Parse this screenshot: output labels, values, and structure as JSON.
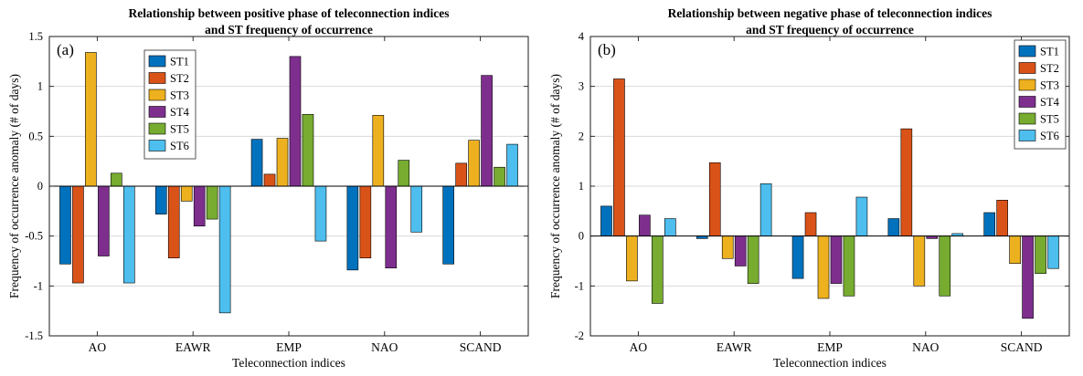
{
  "figure": {
    "background": "#ffffff",
    "axis_color": "#1a1a1a",
    "grid_color": "#d9d9d9",
    "bar_edge_color": "#000000"
  },
  "chart_data": [
    {
      "type": "bar",
      "panel_label": "(a)",
      "title": "Relationship between positive phase of teleconnection indices\nand ST frequency of occurrence",
      "xlabel": "Teleconnection indices",
      "ylabel": "Frequency of occurrence anomaly (# of days)",
      "categories": [
        "AO",
        "EAWR",
        "EMP",
        "NAO",
        "SCAND"
      ],
      "ylim": [
        -1.5,
        1.5
      ],
      "yticks": [
        -1.5,
        -1,
        -0.5,
        0,
        0.5,
        1,
        1.5
      ],
      "ytick_labels": [
        "-1.5",
        "-1",
        "-0.5",
        "0",
        "0.5",
        "1",
        "1.5"
      ],
      "grid": true,
      "legend_position": "inside-top-left",
      "series": [
        {
          "name": "ST1",
          "color": "#0072BD",
          "values": [
            -0.78,
            -0.28,
            0.47,
            -0.84,
            -0.78
          ]
        },
        {
          "name": "ST2",
          "color": "#D95319",
          "values": [
            -0.97,
            -0.72,
            0.12,
            -0.72,
            0.23
          ]
        },
        {
          "name": "ST3",
          "color": "#EDB120",
          "values": [
            1.34,
            -0.15,
            0.48,
            0.71,
            0.46
          ]
        },
        {
          "name": "ST4",
          "color": "#7E2F8E",
          "values": [
            -0.7,
            -0.4,
            1.3,
            -0.82,
            1.11
          ]
        },
        {
          "name": "ST5",
          "color": "#77AC30",
          "values": [
            0.13,
            -0.33,
            0.72,
            0.26,
            0.19
          ]
        },
        {
          "name": "ST6",
          "color": "#4DBEEE",
          "values": [
            -0.97,
            -1.27,
            -0.55,
            -0.46,
            0.42
          ]
        }
      ]
    },
    {
      "type": "bar",
      "panel_label": "(b)",
      "title": "Relationship between negative phase of teleconnection indices\nand ST frequency of occurrence",
      "xlabel": "Teleconnection indices",
      "ylabel": "Frequency of occurrence anomaly (# of days)",
      "categories": [
        "AO",
        "EAWR",
        "EMP",
        "NAO",
        "SCAND"
      ],
      "ylim": [
        -2,
        4
      ],
      "yticks": [
        -2,
        -1,
        0,
        1,
        2,
        3,
        4
      ],
      "ytick_labels": [
        "-2",
        "-1",
        "0",
        "1",
        "2",
        "3",
        "4"
      ],
      "grid": true,
      "legend_position": "inside-top-right",
      "series": [
        {
          "name": "ST1",
          "color": "#0072BD",
          "values": [
            0.6,
            -0.05,
            -0.85,
            0.35,
            0.47
          ]
        },
        {
          "name": "ST2",
          "color": "#D95319",
          "values": [
            3.15,
            1.47,
            0.47,
            2.15,
            0.72
          ]
        },
        {
          "name": "ST3",
          "color": "#EDB120",
          "values": [
            -0.9,
            -0.45,
            -1.25,
            -1.0,
            -0.55
          ]
        },
        {
          "name": "ST4",
          "color": "#7E2F8E",
          "values": [
            0.42,
            -0.6,
            -0.95,
            -0.05,
            -1.65
          ]
        },
        {
          "name": "ST5",
          "color": "#77AC30",
          "values": [
            -1.35,
            -0.95,
            -1.2,
            -1.2,
            -0.75
          ]
        },
        {
          "name": "ST6",
          "color": "#4DBEEE",
          "values": [
            0.35,
            1.05,
            0.78,
            0.05,
            -0.65
          ]
        }
      ]
    }
  ]
}
